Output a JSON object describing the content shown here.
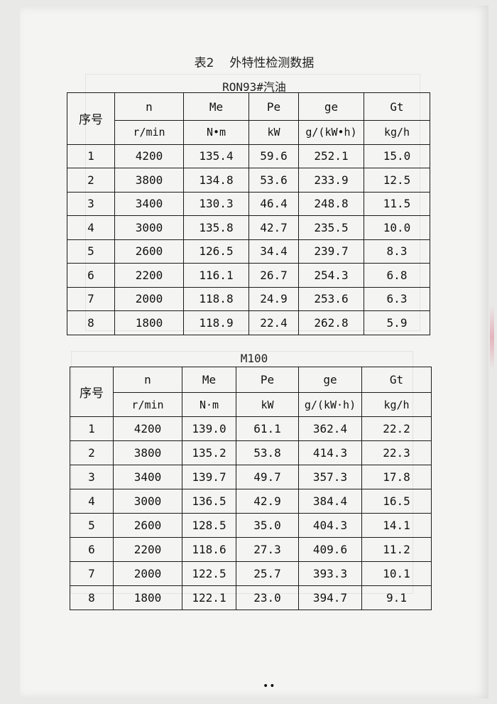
{
  "document": {
    "table_number": "表2",
    "table_title": "外特性检测数据",
    "page_marker": "••"
  },
  "tables": [
    {
      "subtitle": "RON93#汽油",
      "headers": [
        "序号",
        "n",
        "Me",
        "Pe",
        "ge",
        "Gt"
      ],
      "units": [
        "r/min",
        "N•m",
        "kW",
        "g/(kW•h)",
        "kg/h"
      ],
      "rows": [
        [
          "1",
          "4200",
          "135.4",
          "59.6",
          "252.1",
          "15.0"
        ],
        [
          "2",
          "3800",
          "134.8",
          "53.6",
          "233.9",
          "12.5"
        ],
        [
          "3",
          "3400",
          "130.3",
          "46.4",
          "248.8",
          "11.5"
        ],
        [
          "4",
          "3000",
          "135.8",
          "42.7",
          "235.5",
          "10.0"
        ],
        [
          "5",
          "2600",
          "126.5",
          "34.4",
          "239.7",
          "8.3"
        ],
        [
          "6",
          "2200",
          "116.1",
          "26.7",
          "254.3",
          "6.8"
        ],
        [
          "7",
          "2000",
          "118.8",
          "24.9",
          "253.6",
          "6.3"
        ],
        [
          "8",
          "1800",
          "118.9",
          "22.4",
          "262.8",
          "5.9"
        ]
      ]
    },
    {
      "subtitle": "M100",
      "headers": [
        "序号",
        "n",
        "Me",
        "Pe",
        "ge",
        "Gt"
      ],
      "units": [
        "r/min",
        "N·m",
        "kW",
        "g/(kW·h)",
        "kg/h"
      ],
      "rows": [
        [
          "1",
          "4200",
          "139.0",
          "61.1",
          "362.4",
          "22.2"
        ],
        [
          "2",
          "3800",
          "135.2",
          "53.8",
          "414.3",
          "22.3"
        ],
        [
          "3",
          "3400",
          "139.7",
          "49.7",
          "357.3",
          "17.8"
        ],
        [
          "4",
          "3000",
          "136.5",
          "42.9",
          "384.4",
          "16.5"
        ],
        [
          "5",
          "2600",
          "128.5",
          "35.0",
          "404.3",
          "14.1"
        ],
        [
          "6",
          "2200",
          "118.6",
          "27.3",
          "409.6",
          "11.2"
        ],
        [
          "7",
          "2000",
          "122.5",
          "25.7",
          "393.3",
          "10.1"
        ],
        [
          "8",
          "1800",
          "122.1",
          "23.0",
          "394.7",
          "9.1"
        ]
      ]
    }
  ]
}
